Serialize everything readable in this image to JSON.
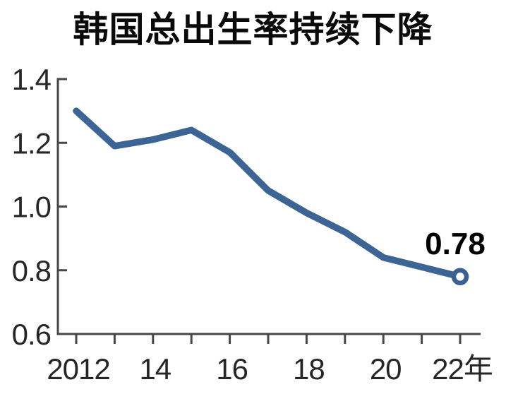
{
  "header": {
    "title": "韩国总出生率持续下降"
  },
  "chart_data": {
    "type": "line",
    "title": "韩国总出生率持续下降",
    "x": [
      2012,
      2013,
      2014,
      2015,
      2016,
      2017,
      2018,
      2019,
      2020,
      2021,
      2022
    ],
    "x_tick_labels": [
      "2012",
      "",
      "14",
      "",
      "16",
      "",
      "18",
      "",
      "20",
      "",
      "22年"
    ],
    "series": [
      {
        "name": "总出生率",
        "values": [
          1.3,
          1.19,
          1.21,
          1.24,
          1.17,
          1.05,
          0.98,
          0.92,
          0.84,
          0.81,
          0.78
        ]
      }
    ],
    "xlabel": "",
    "ylabel": "",
    "ylim": [
      0.6,
      1.4
    ],
    "y_ticks": [
      0.6,
      0.8,
      1.0,
      1.2,
      1.4
    ],
    "y_tick_labels": [
      "0.6",
      "0.8",
      "1.0",
      "1.2",
      "1.4"
    ],
    "grid": false,
    "legend": "none",
    "annotation": {
      "text": "0.78",
      "x": 2022,
      "y": 0.78
    },
    "end_marker": "open-circle",
    "colors": {
      "line": "#3c6494",
      "marker_ring": "#3a608f",
      "marker_fill": "#ffffff",
      "axis": "#474747",
      "tick_label": "#262626",
      "title": "#0a0a0a",
      "annotation": "#000000",
      "background": "#ffffff"
    }
  }
}
